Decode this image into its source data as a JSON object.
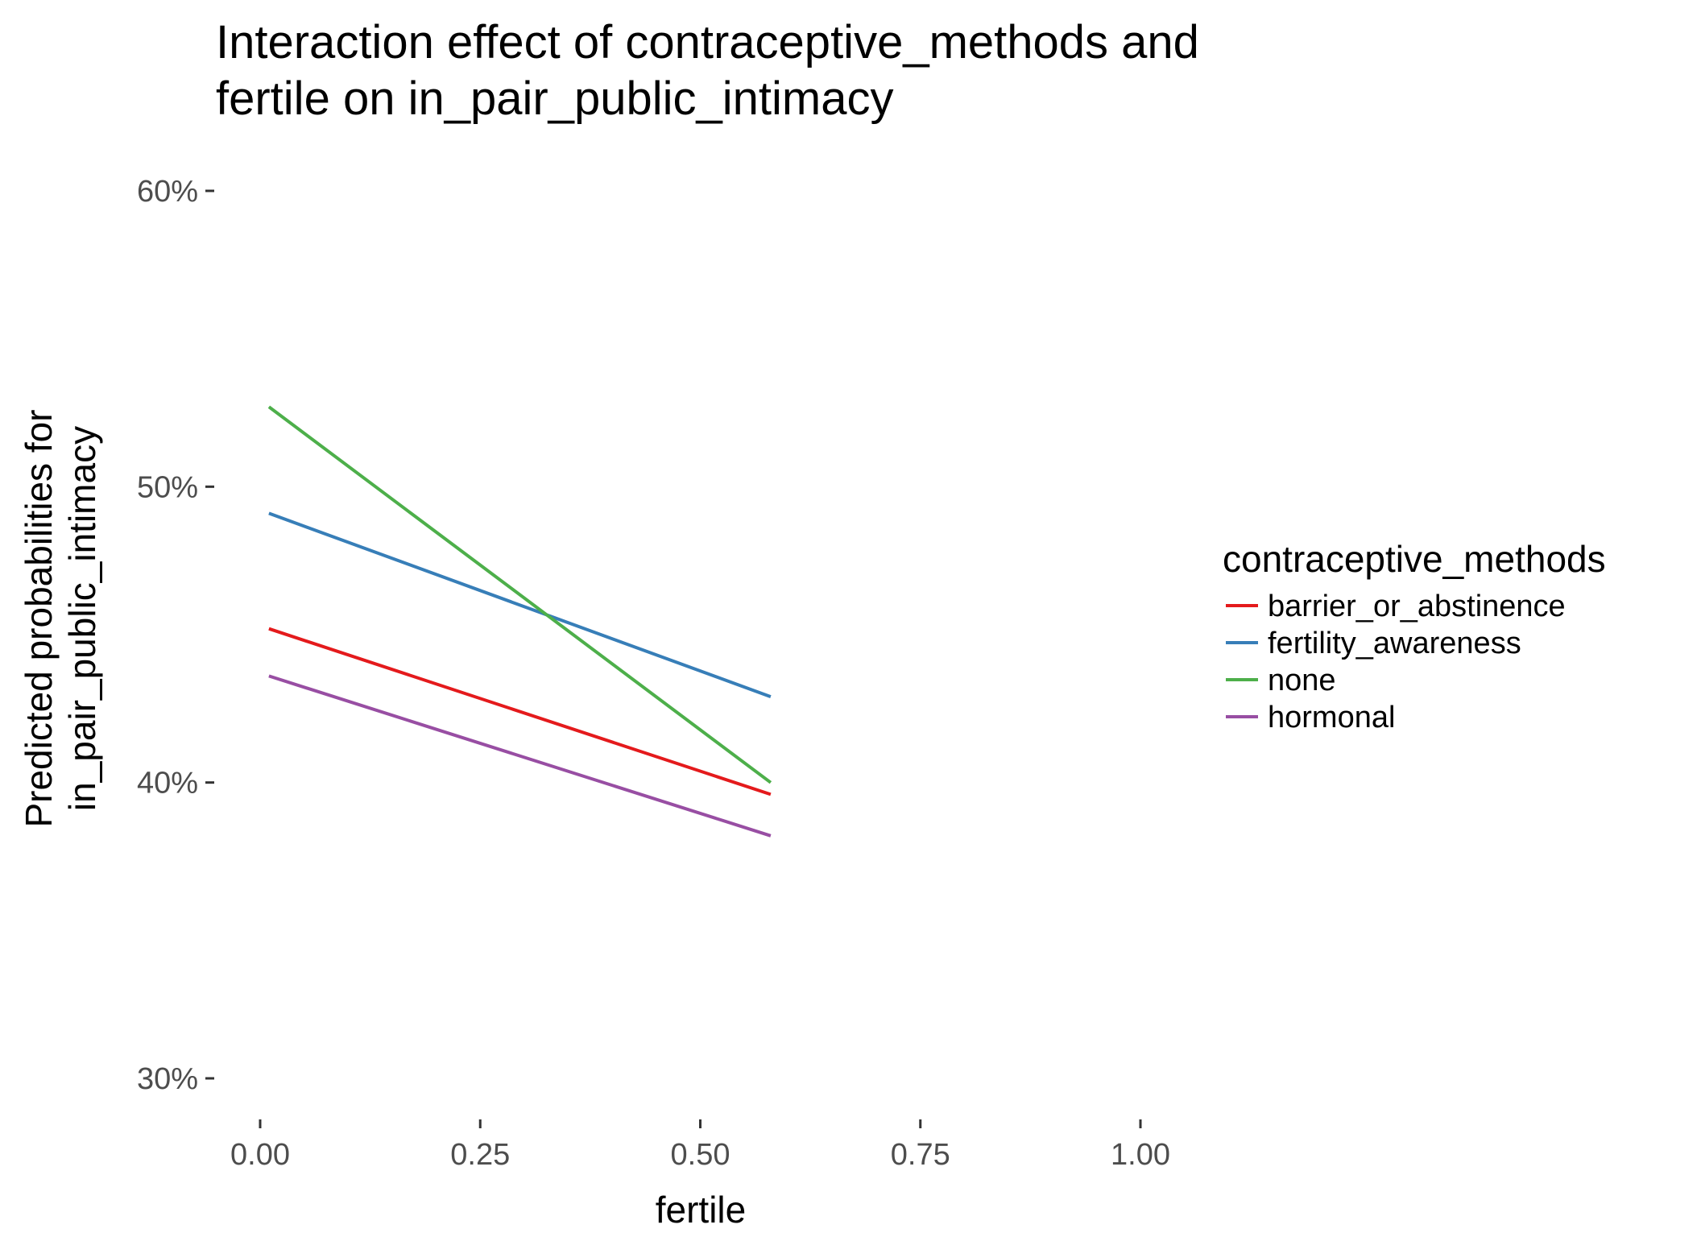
{
  "chart_data": {
    "type": "line",
    "title_lines": [
      "Interaction effect of contraceptive_methods and",
      "fertile on in_pair_public_intimacy"
    ],
    "xlabel": "fertile",
    "ylabel_lines": [
      "Predicted probabilities for",
      "in_pair_public_intimacy"
    ],
    "xlim": [
      0,
      1
    ],
    "ylim": [
      0.3,
      0.6
    ],
    "x_ticks": [
      0,
      0.25,
      0.5,
      0.75,
      1
    ],
    "x_tick_labels": [
      "0.00",
      "0.25",
      "0.50",
      "0.75",
      "1.00"
    ],
    "y_ticks": [
      0.3,
      0.4,
      0.5,
      0.6
    ],
    "y_tick_labels": [
      "30%",
      "40%",
      "50%",
      "60%"
    ],
    "grid": false,
    "legend_position": "right",
    "legend_title": "contraceptive_methods",
    "series": [
      {
        "name": "barrier_or_abstinence",
        "color": "#e41a1c",
        "x": [
          0.01,
          0.58
        ],
        "y": [
          0.452,
          0.396
        ]
      },
      {
        "name": "fertility_awareness",
        "color": "#377eb8",
        "x": [
          0.01,
          0.58
        ],
        "y": [
          0.491,
          0.429
        ]
      },
      {
        "name": "none",
        "color": "#4daf4a",
        "x": [
          0.01,
          0.58
        ],
        "y": [
          0.527,
          0.4
        ]
      },
      {
        "name": "hormonal",
        "color": "#984ea3",
        "x": [
          0.01,
          0.58
        ],
        "y": [
          0.436,
          0.382
        ]
      }
    ]
  }
}
